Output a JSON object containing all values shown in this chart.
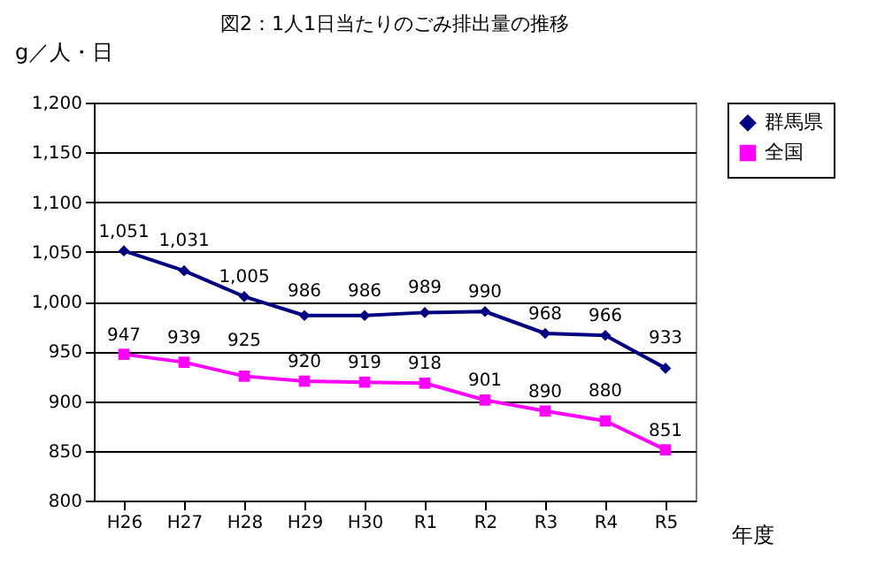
{
  "chart_data": {
    "type": "line",
    "title": "図2：1人1日当たりのごみ排出量の推移",
    "ylabel": "g／人・日",
    "xlabel": "年度",
    "categories": [
      "H26",
      "H27",
      "H28",
      "H29",
      "H30",
      "R1",
      "R2",
      "R3",
      "R4",
      "R5"
    ],
    "series": [
      {
        "name": "群馬県",
        "color": "#000080",
        "marker": "diamond",
        "values": [
          1051,
          1031,
          1005,
          986,
          986,
          989,
          990,
          968,
          966,
          933
        ],
        "value_labels": [
          "1,051",
          "1,031",
          "1,005",
          "986",
          "986",
          "989",
          "990",
          "968",
          "966",
          "933"
        ]
      },
      {
        "name": "全国",
        "color": "#ff00ff",
        "marker": "square",
        "values": [
          947,
          939,
          925,
          920,
          919,
          918,
          901,
          890,
          880,
          851
        ]
      }
    ],
    "ylim": [
      800,
      1200
    ],
    "yticks": [
      {
        "value": 800,
        "label": "800"
      },
      {
        "value": 850,
        "label": "850"
      },
      {
        "value": 900,
        "label": "900"
      },
      {
        "value": 950,
        "label": "950"
      },
      {
        "value": 1000,
        "label": "1,000"
      },
      {
        "value": 1050,
        "label": "1,050"
      },
      {
        "value": 1100,
        "label": "1,100"
      },
      {
        "value": 1150,
        "label": "1,150"
      },
      {
        "value": 1200,
        "label": "1,200"
      }
    ],
    "grid": "y",
    "legend": "right",
    "data_labels": true,
    "line_style": "solid"
  }
}
